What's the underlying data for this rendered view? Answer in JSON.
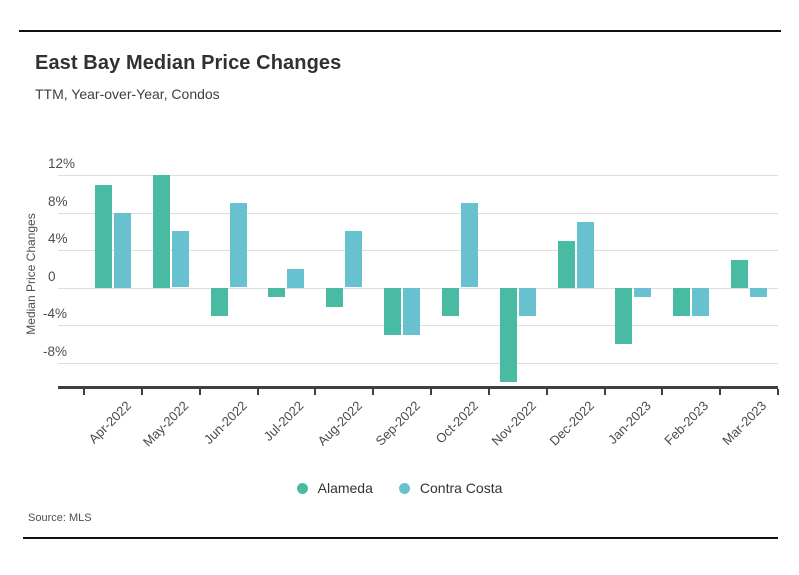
{
  "header": {
    "title": "East Bay Median Price Changes",
    "subtitle": "TTM, Year-over-Year, Condos"
  },
  "chart_data": {
    "type": "bar",
    "title": "East Bay Median Price Changes",
    "subtitle": "TTM, Year-over-Year, Condos",
    "xlabel": "",
    "ylabel": "Median Price Changes",
    "categories": [
      "Apr-2022",
      "May-2022",
      "Jun-2022",
      "Jul-2022",
      "Aug-2022",
      "Sep-2022",
      "Oct-2022",
      "Nov-2022",
      "Dec-2022",
      "Jan-2023",
      "Feb-2023",
      "Mar-2023"
    ],
    "series": [
      {
        "name": "Alameda",
        "color": "#4abba3",
        "values": [
          11,
          12,
          -3,
          -1,
          -2,
          -5,
          -3,
          -10,
          5,
          -6,
          -3,
          3
        ]
      },
      {
        "name": "Contra Costa",
        "color": "#67c1ce",
        "values": [
          8,
          6,
          9,
          2,
          6,
          -5,
          9,
          -3,
          7,
          -1,
          -3,
          -1
        ]
      }
    ],
    "y_ticks": [
      {
        "label": "12%",
        "value": 12
      },
      {
        "label": "8%",
        "value": 8
      },
      {
        "label": "4%",
        "value": 4
      },
      {
        "label": "0",
        "value": 0
      },
      {
        "label": "-4%",
        "value": -4
      },
      {
        "label": "-8%",
        "value": -8
      }
    ],
    "ylim": [
      -10.6,
      13.4
    ],
    "grid": "horizontal",
    "legend_position": "bottom"
  },
  "footer": {
    "source": "Source: MLS"
  }
}
